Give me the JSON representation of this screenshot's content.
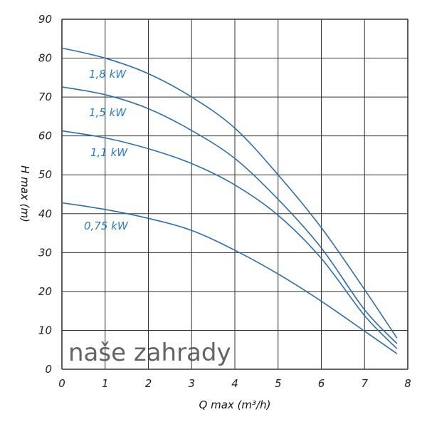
{
  "chart_data": {
    "type": "line",
    "title": "",
    "xlabel": "Q max (m³/h)",
    "ylabel": "H max (m)",
    "xlim": [
      0,
      8
    ],
    "ylim": [
      0,
      90
    ],
    "grid": true,
    "x_ticks": [
      "0",
      "1",
      "2",
      "3",
      "4",
      "5",
      "6",
      "7",
      "8"
    ],
    "y_ticks": [
      "0",
      "10",
      "20",
      "30",
      "40",
      "50",
      "60",
      "70",
      "80",
      "90"
    ],
    "x": [
      0,
      1,
      2,
      3,
      4,
      5,
      6,
      7,
      7.75
    ],
    "series": [
      {
        "name": "1,8 kW",
        "values": [
          82.6,
          80,
          76,
          70,
          62,
          50,
          36.4,
          20.5,
          8
        ]
      },
      {
        "name": "1,5 kW",
        "values": [
          72.6,
          70.6,
          67,
          61.4,
          54.2,
          43.7,
          31.2,
          15.3,
          6.6
        ]
      },
      {
        "name": "1,1 kW",
        "values": [
          61.3,
          59.5,
          56.7,
          52.9,
          47.4,
          39.6,
          28.5,
          13.8,
          5.3
        ]
      },
      {
        "name": "0,75 kW",
        "values": [
          42.8,
          41.1,
          38.8,
          35.7,
          30.6,
          24.5,
          17.5,
          9.8,
          4.0
        ]
      }
    ],
    "line_color": "#2f6ea8",
    "label_color": "#2a7bbf"
  },
  "watermark": "naše zahrady"
}
